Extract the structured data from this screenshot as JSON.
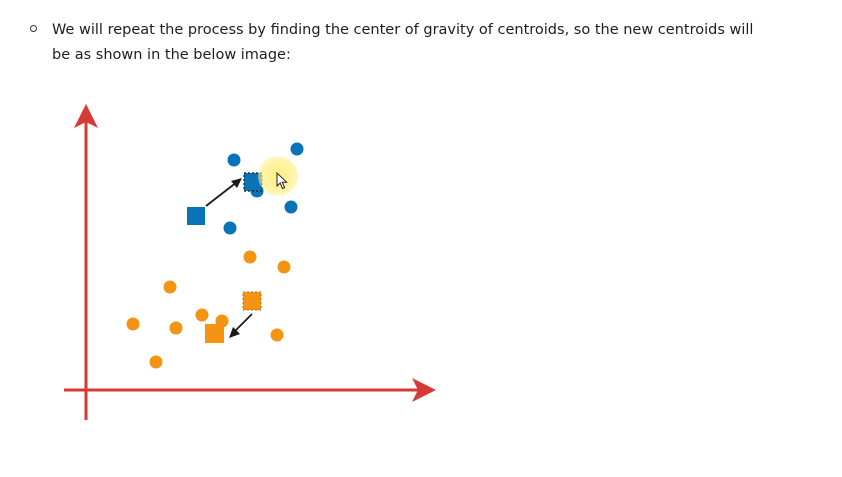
{
  "paragraph": {
    "line1": "We will repeat the process by finding the center of gravity of centroids, so the new centroids will",
    "line2": "be as shown in the below image:"
  },
  "figure": {
    "axis_color": "#d53a35",
    "blue_cluster_color": "#0a73b8",
    "orange_cluster_color": "#f59312",
    "arrow_color": "#1a1a1a"
  },
  "cursor": {
    "icon": "pointer-icon",
    "highlight_color": "#fff08a"
  }
}
